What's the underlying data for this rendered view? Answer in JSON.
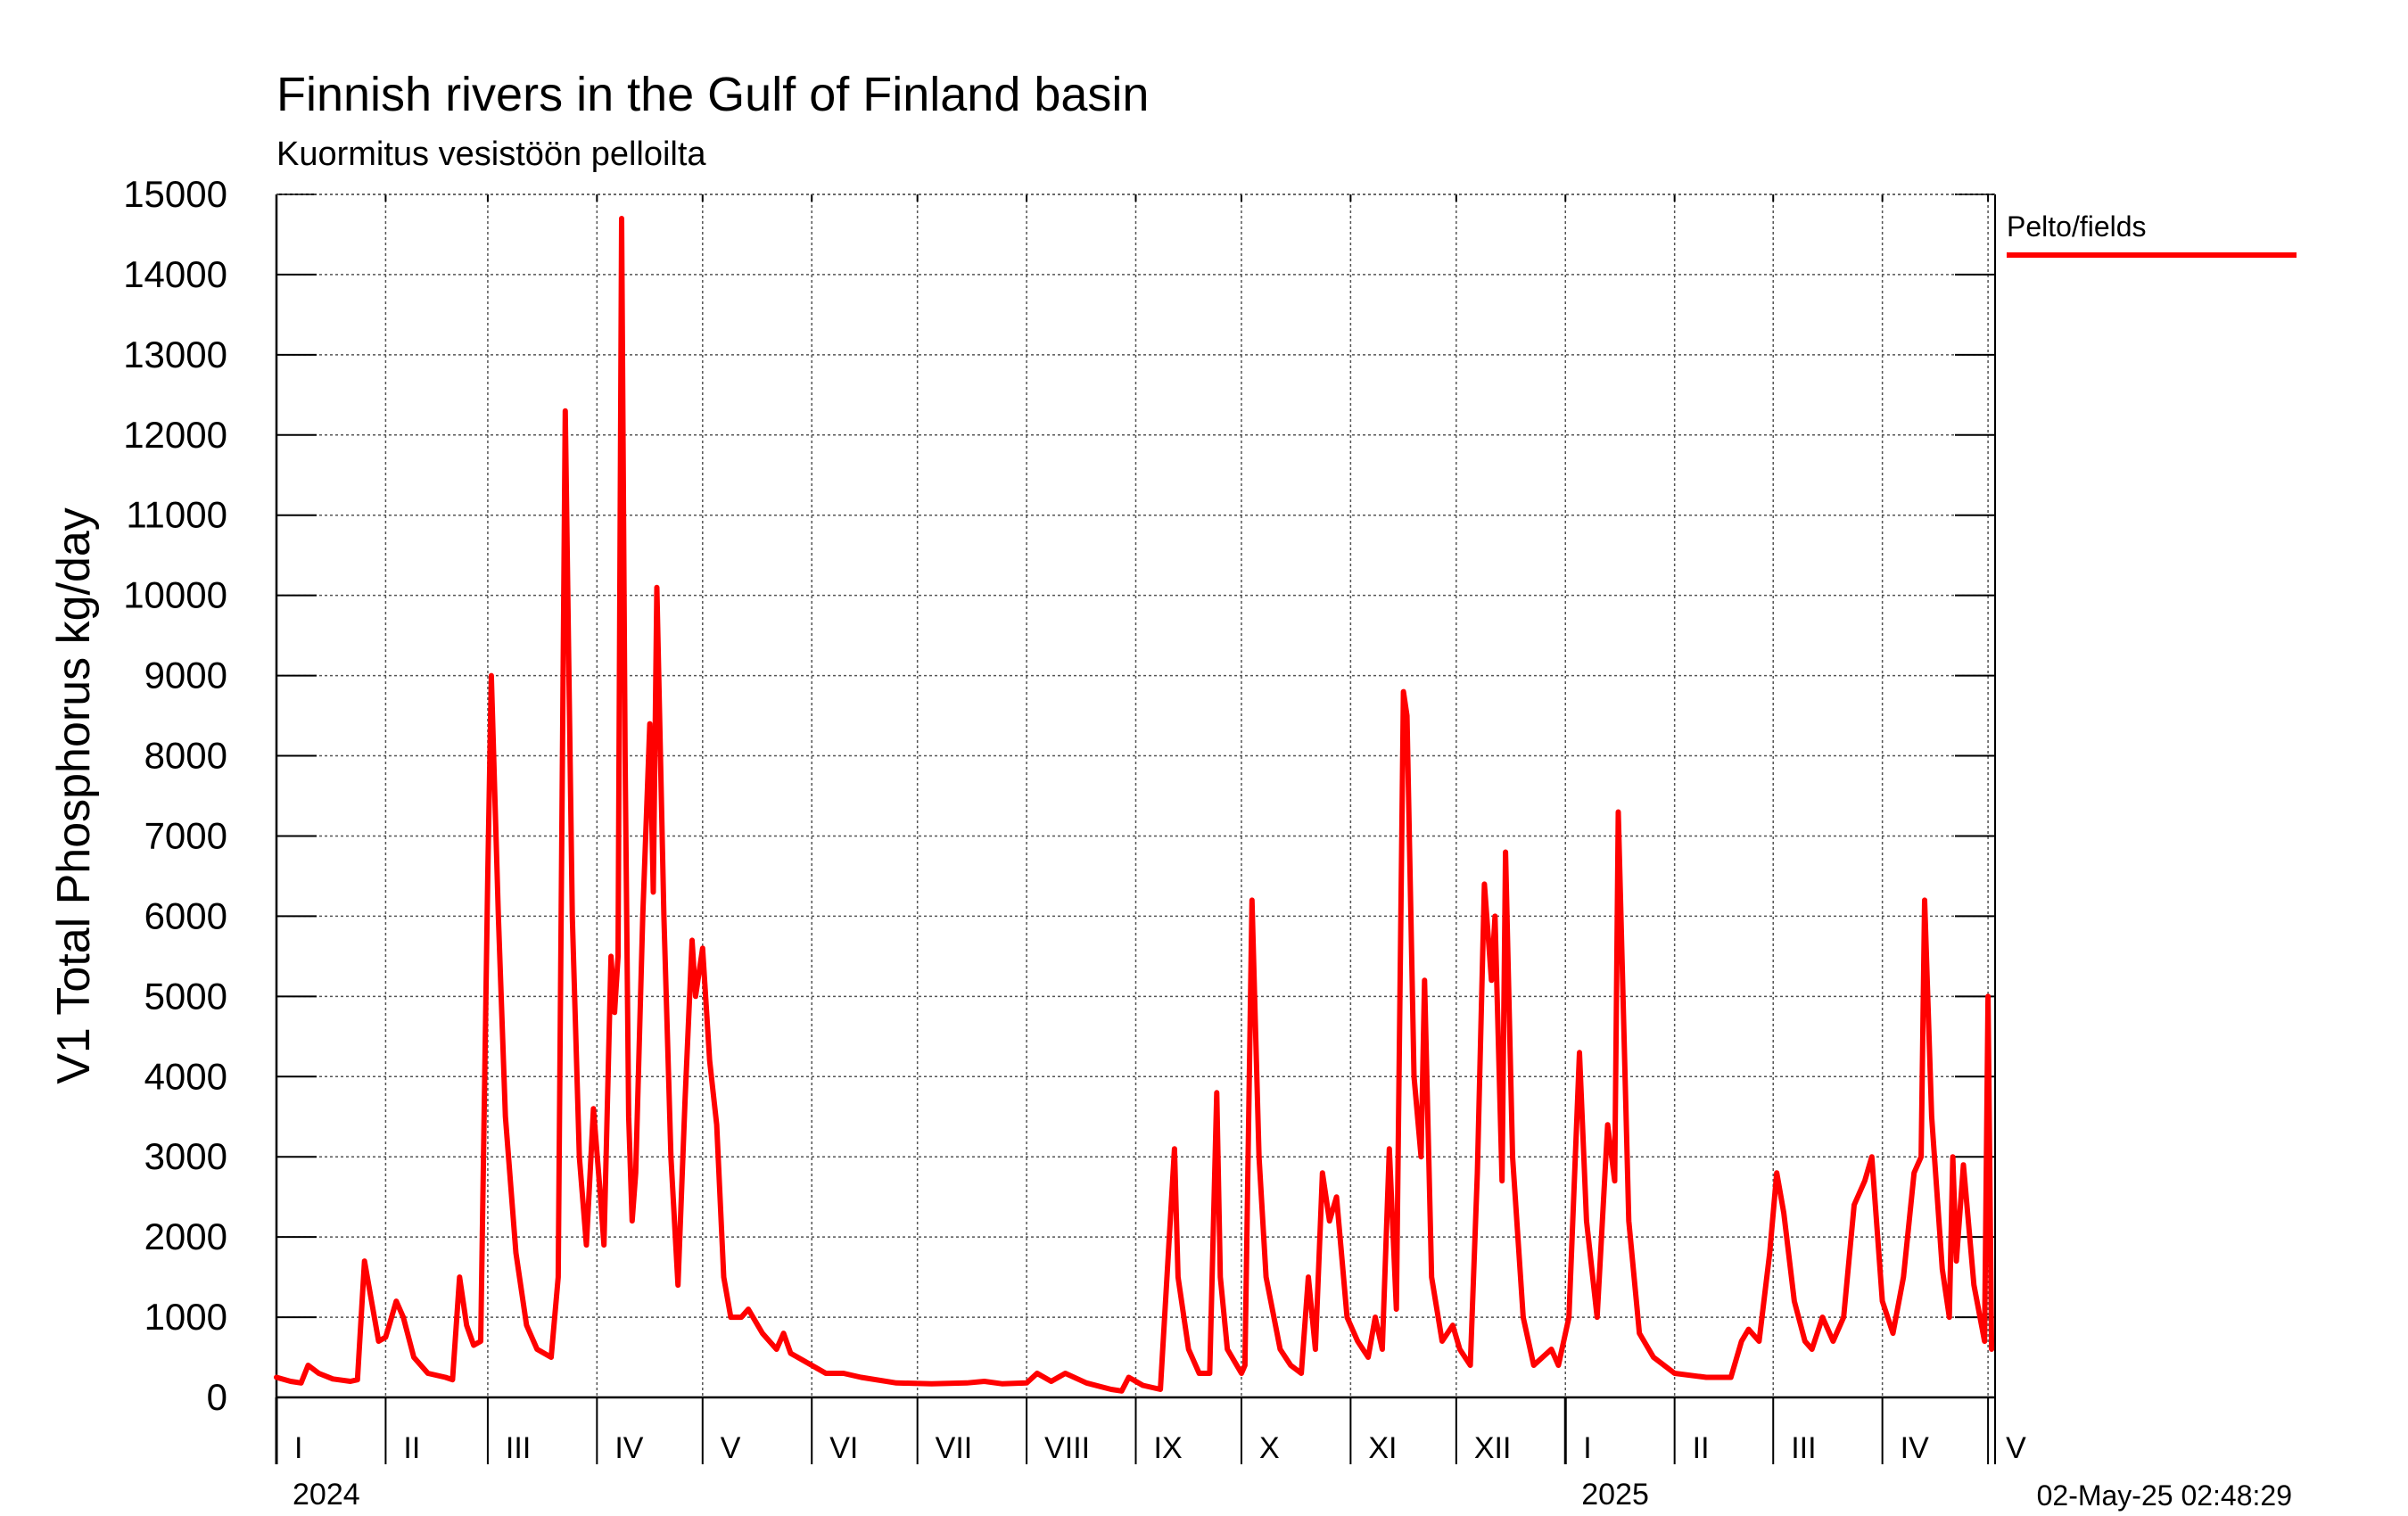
{
  "chart_data": {
    "type": "line",
    "title": "Finnish rivers in the Gulf of Finland basin",
    "subtitle": "Kuormitus vesistöön pelloilta",
    "ylabel": "V1 Total Phosphorus kg/day",
    "ylim": [
      0,
      15000
    ],
    "yticks": [
      0,
      1000,
      2000,
      3000,
      4000,
      5000,
      6000,
      7000,
      8000,
      9000,
      10000,
      11000,
      12000,
      13000,
      14000,
      15000
    ],
    "xlim": [
      "2024-01-01",
      "2025-05-02"
    ],
    "months": [
      {
        "label": "I",
        "start": "2024-01-01"
      },
      {
        "label": "II",
        "start": "2024-02-01"
      },
      {
        "label": "III",
        "start": "2024-03-01"
      },
      {
        "label": "IV",
        "start": "2024-04-01"
      },
      {
        "label": "V",
        "start": "2024-05-01"
      },
      {
        "label": "VI",
        "start": "2024-06-01"
      },
      {
        "label": "VII",
        "start": "2024-07-01"
      },
      {
        "label": "VIII",
        "start": "2024-08-01"
      },
      {
        "label": "IX",
        "start": "2024-09-01"
      },
      {
        "label": "X",
        "start": "2024-10-01"
      },
      {
        "label": "XI",
        "start": "2024-11-01"
      },
      {
        "label": "XII",
        "start": "2024-12-01"
      },
      {
        "label": "I",
        "start": "2025-01-01"
      },
      {
        "label": "II",
        "start": "2025-02-01"
      },
      {
        "label": "III",
        "start": "2025-03-01"
      },
      {
        "label": "IV",
        "start": "2025-04-01"
      },
      {
        "label": "V",
        "start": "2025-05-01"
      }
    ],
    "years": [
      {
        "label": "2024",
        "start": "2024-01-01"
      },
      {
        "label": "2025",
        "start": "2025-01-01"
      }
    ],
    "grid": true,
    "legend": {
      "position": "top-right"
    },
    "timestamp": "02-May-25 02:48:29",
    "series": [
      {
        "name": "Pelto/fields",
        "color": "#ff0000",
        "points": [
          [
            "2024-01-01",
            250
          ],
          [
            "2024-01-05",
            200
          ],
          [
            "2024-01-08",
            180
          ],
          [
            "2024-01-10",
            400
          ],
          [
            "2024-01-13",
            300
          ],
          [
            "2024-01-17",
            230
          ],
          [
            "2024-01-22",
            200
          ],
          [
            "2024-01-24",
            220
          ],
          [
            "2024-01-26",
            1700
          ],
          [
            "2024-01-28",
            1200
          ],
          [
            "2024-01-30",
            700
          ],
          [
            "2024-02-01",
            750
          ],
          [
            "2024-02-02",
            900
          ],
          [
            "2024-02-04",
            1200
          ],
          [
            "2024-02-06",
            1000
          ],
          [
            "2024-02-09",
            500
          ],
          [
            "2024-02-13",
            300
          ],
          [
            "2024-02-18",
            250
          ],
          [
            "2024-02-20",
            220
          ],
          [
            "2024-02-22",
            1500
          ],
          [
            "2024-02-24",
            900
          ],
          [
            "2024-02-26",
            650
          ],
          [
            "2024-02-28",
            700
          ],
          [
            "2024-03-01",
            6500
          ],
          [
            "2024-03-02",
            9000
          ],
          [
            "2024-03-04",
            6000
          ],
          [
            "2024-03-06",
            3500
          ],
          [
            "2024-03-09",
            1800
          ],
          [
            "2024-03-12",
            900
          ],
          [
            "2024-03-15",
            600
          ],
          [
            "2024-03-19",
            500
          ],
          [
            "2024-03-21",
            1500
          ],
          [
            "2024-03-23",
            12300
          ],
          [
            "2024-03-25",
            6000
          ],
          [
            "2024-03-27",
            3000
          ],
          [
            "2024-03-29",
            1900
          ],
          [
            "2024-03-31",
            3600
          ],
          [
            "2024-04-02",
            2500
          ],
          [
            "2024-04-03",
            1900
          ],
          [
            "2024-04-05",
            5500
          ],
          [
            "2024-04-06",
            4800
          ],
          [
            "2024-04-07",
            5500
          ],
          [
            "2024-04-08",
            14700
          ],
          [
            "2024-04-09",
            8000
          ],
          [
            "2024-04-10",
            3500
          ],
          [
            "2024-04-11",
            2200
          ],
          [
            "2024-04-12",
            2800
          ],
          [
            "2024-04-14",
            6000
          ],
          [
            "2024-04-16",
            8400
          ],
          [
            "2024-04-17",
            6300
          ],
          [
            "2024-04-18",
            10100
          ],
          [
            "2024-04-20",
            6000
          ],
          [
            "2024-04-22",
            3000
          ],
          [
            "2024-04-24",
            1400
          ],
          [
            "2024-04-26",
            3700
          ],
          [
            "2024-04-28",
            5700
          ],
          [
            "2024-04-29",
            5000
          ],
          [
            "2024-05-01",
            5600
          ],
          [
            "2024-05-03",
            4200
          ],
          [
            "2024-05-05",
            3400
          ],
          [
            "2024-05-07",
            1500
          ],
          [
            "2024-05-09",
            1000
          ],
          [
            "2024-05-12",
            1000
          ],
          [
            "2024-05-14",
            1100
          ],
          [
            "2024-05-18",
            800
          ],
          [
            "2024-05-22",
            600
          ],
          [
            "2024-05-24",
            800
          ],
          [
            "2024-05-26",
            550
          ],
          [
            "2024-05-30",
            450
          ],
          [
            "2024-06-05",
            300
          ],
          [
            "2024-06-10",
            300
          ],
          [
            "2024-06-15",
            250
          ],
          [
            "2024-06-25",
            180
          ],
          [
            "2024-07-05",
            170
          ],
          [
            "2024-07-15",
            180
          ],
          [
            "2024-07-20",
            200
          ],
          [
            "2024-07-25",
            170
          ],
          [
            "2024-08-01",
            180
          ],
          [
            "2024-08-04",
            300
          ],
          [
            "2024-08-08",
            200
          ],
          [
            "2024-08-12",
            300
          ],
          [
            "2024-08-18",
            180
          ],
          [
            "2024-08-25",
            100
          ],
          [
            "2024-08-28",
            80
          ],
          [
            "2024-08-30",
            250
          ],
          [
            "2024-09-03",
            150
          ],
          [
            "2024-09-08",
            100
          ],
          [
            "2024-09-12",
            3100
          ],
          [
            "2024-09-13",
            1500
          ],
          [
            "2024-09-16",
            600
          ],
          [
            "2024-09-19",
            300
          ],
          [
            "2024-09-22",
            300
          ],
          [
            "2024-09-24",
            3800
          ],
          [
            "2024-09-25",
            1500
          ],
          [
            "2024-09-27",
            600
          ],
          [
            "2024-10-01",
            300
          ],
          [
            "2024-10-02",
            400
          ],
          [
            "2024-10-04",
            6200
          ],
          [
            "2024-10-06",
            3000
          ],
          [
            "2024-10-08",
            1500
          ],
          [
            "2024-10-12",
            600
          ],
          [
            "2024-10-15",
            400
          ],
          [
            "2024-10-18",
            300
          ],
          [
            "2024-10-20",
            1500
          ],
          [
            "2024-10-22",
            600
          ],
          [
            "2024-10-24",
            2800
          ],
          [
            "2024-10-26",
            2200
          ],
          [
            "2024-10-28",
            2500
          ],
          [
            "2024-10-31",
            1000
          ],
          [
            "2024-11-03",
            700
          ],
          [
            "2024-11-06",
            500
          ],
          [
            "2024-11-08",
            1000
          ],
          [
            "2024-11-10",
            600
          ],
          [
            "2024-11-12",
            3100
          ],
          [
            "2024-11-14",
            1100
          ],
          [
            "2024-11-15",
            5000
          ],
          [
            "2024-11-16",
            8800
          ],
          [
            "2024-11-17",
            8500
          ],
          [
            "2024-11-19",
            4000
          ],
          [
            "2024-11-21",
            3000
          ],
          [
            "2024-11-22",
            5200
          ],
          [
            "2024-11-24",
            1500
          ],
          [
            "2024-11-27",
            700
          ],
          [
            "2024-11-30",
            900
          ],
          [
            "2024-12-02",
            600
          ],
          [
            "2024-12-05",
            400
          ],
          [
            "2024-12-07",
            2800
          ],
          [
            "2024-12-09",
            6400
          ],
          [
            "2024-12-11",
            5200
          ],
          [
            "2024-12-12",
            6000
          ],
          [
            "2024-12-14",
            2700
          ],
          [
            "2024-12-15",
            6800
          ],
          [
            "2024-12-17",
            3000
          ],
          [
            "2024-12-20",
            1000
          ],
          [
            "2024-12-23",
            400
          ],
          [
            "2024-12-28",
            600
          ],
          [
            "2024-12-30",
            400
          ],
          [
            "2025-01-02",
            1000
          ],
          [
            "2025-01-05",
            4300
          ],
          [
            "2025-01-07",
            2200
          ],
          [
            "2025-01-10",
            1000
          ],
          [
            "2025-01-13",
            3400
          ],
          [
            "2025-01-15",
            2700
          ],
          [
            "2025-01-16",
            7300
          ],
          [
            "2025-01-19",
            2200
          ],
          [
            "2025-01-22",
            800
          ],
          [
            "2025-01-26",
            500
          ],
          [
            "2025-02-01",
            300
          ],
          [
            "2025-02-10",
            250
          ],
          [
            "2025-02-17",
            250
          ],
          [
            "2025-02-20",
            700
          ],
          [
            "2025-02-22",
            850
          ],
          [
            "2025-02-25",
            700
          ],
          [
            "2025-02-28",
            1800
          ],
          [
            "2025-03-02",
            2800
          ],
          [
            "2025-03-04",
            2300
          ],
          [
            "2025-03-07",
            1200
          ],
          [
            "2025-03-10",
            700
          ],
          [
            "2025-03-12",
            600
          ],
          [
            "2025-03-15",
            1000
          ],
          [
            "2025-03-18",
            700
          ],
          [
            "2025-03-21",
            1000
          ],
          [
            "2025-03-24",
            2400
          ],
          [
            "2025-03-27",
            2700
          ],
          [
            "2025-03-29",
            3000
          ],
          [
            "2025-04-01",
            1200
          ],
          [
            "2025-04-04",
            800
          ],
          [
            "2025-04-07",
            1500
          ],
          [
            "2025-04-10",
            2800
          ],
          [
            "2025-04-12",
            3000
          ],
          [
            "2025-04-13",
            6200
          ],
          [
            "2025-04-15",
            3500
          ],
          [
            "2025-04-18",
            1600
          ],
          [
            "2025-04-20",
            1000
          ],
          [
            "2025-04-21",
            3000
          ],
          [
            "2025-04-22",
            1700
          ],
          [
            "2025-04-24",
            2900
          ],
          [
            "2025-04-27",
            1400
          ],
          [
            "2025-04-30",
            700
          ],
          [
            "2025-05-01",
            5000
          ],
          [
            "2025-05-02",
            600
          ]
        ]
      }
    ]
  }
}
